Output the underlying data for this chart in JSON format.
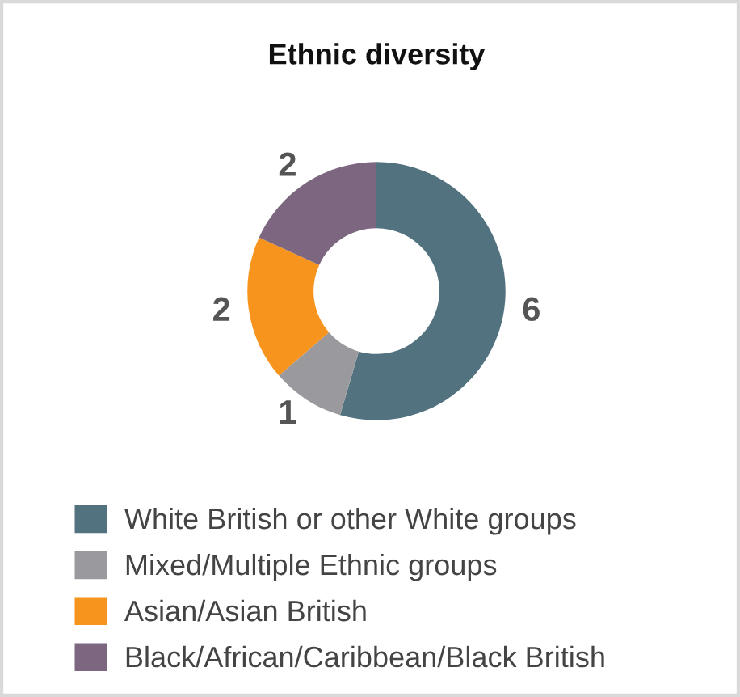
{
  "chart_data": {
    "type": "donut",
    "title": "Ethnic diversity",
    "categories": [
      "White British or other White groups",
      "Mixed/Multiple Ethnic groups",
      "Asian/Asian British",
      "Black/African/Caribbean/Black British"
    ],
    "values": [
      6,
      1,
      2,
      2
    ],
    "colors": [
      "#52727f",
      "#9a9a9e",
      "#f7941d",
      "#7d6680"
    ],
    "data_labels": true,
    "legend": "bottom"
  }
}
